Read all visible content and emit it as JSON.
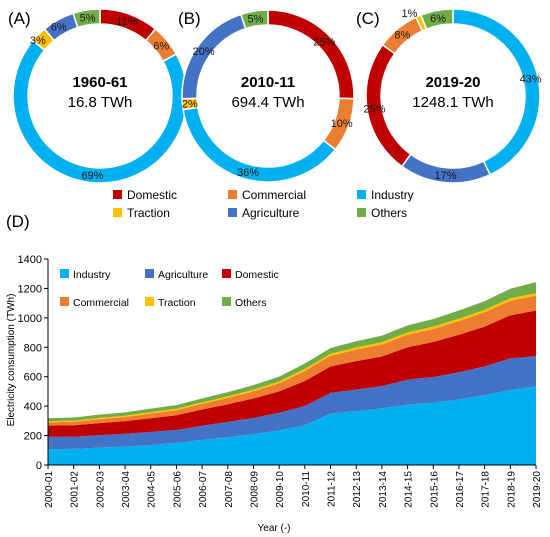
{
  "colors": {
    "Domestic": "#c00000",
    "Commercial": "#ed7d31",
    "Industry": "#00b0f0",
    "Traction": "#ffc000",
    "Agriculture": "#4472c4",
    "Others": "#70ad47"
  },
  "legend_top": {
    "items": [
      "Domestic",
      "Commercial",
      "Industry",
      "Traction",
      "Agriculture",
      "Others"
    ]
  },
  "chart_data": [
    {
      "type": "pie",
      "panel_label": "(A)",
      "center_title": "1960-61",
      "center_value": "16.8 TWh",
      "slices": [
        {
          "name": "Domestic",
          "value": 11,
          "label": "11%"
        },
        {
          "name": "Commercial",
          "value": 6,
          "label": "6%"
        },
        {
          "name": "Industry",
          "value": 69,
          "label": "69%"
        },
        {
          "name": "Traction",
          "value": 3,
          "label": "3%"
        },
        {
          "name": "Agriculture",
          "value": 6,
          "label": "6%"
        },
        {
          "name": "Others",
          "value": 5,
          "label": "5%"
        }
      ]
    },
    {
      "type": "pie",
      "panel_label": "(B)",
      "center_title": "2010-11",
      "center_value": "694.4 TWh",
      "slices": [
        {
          "name": "Domestic",
          "value": 25,
          "label": "25%"
        },
        {
          "name": "Commercial",
          "value": 10,
          "label": "10%"
        },
        {
          "name": "Industry",
          "value": 36,
          "label": "36%"
        },
        {
          "name": "Traction",
          "value": 2,
          "label": "2%"
        },
        {
          "name": "Agriculture",
          "value": 20,
          "label": "20%"
        },
        {
          "name": "Others",
          "value": 5,
          "label": "5%"
        }
      ]
    },
    {
      "type": "pie",
      "panel_label": "(C)",
      "center_title": "2019-20",
      "center_value": "1248.1 TWh",
      "slices": [
        {
          "name": "Industry",
          "value": 43,
          "label": "43%"
        },
        {
          "name": "Agriculture",
          "value": 17,
          "label": "17%"
        },
        {
          "name": "Domestic",
          "value": 25,
          "label": "25%"
        },
        {
          "name": "Commercial",
          "value": 8,
          "label": "8%"
        },
        {
          "name": "Traction",
          "value": 1,
          "label": "1%"
        },
        {
          "name": "Others",
          "value": 6,
          "label": "6%"
        }
      ]
    },
    {
      "type": "area",
      "stacked": true,
      "panel_label": "(D)",
      "xlabel": "Year (-)",
      "ylabel": "Electricity consumption (TWh)",
      "ylim": [
        0,
        1400
      ],
      "yticks": [
        0,
        200,
        400,
        600,
        800,
        1000,
        1200,
        1400
      ],
      "grid": false,
      "legend": {
        "position": "top-left",
        "items": [
          "Industry",
          "Agriculture",
          "Domestic",
          "Commercial",
          "Traction",
          "Others"
        ]
      },
      "categories": [
        "2000-01",
        "2001-02",
        "2002-03",
        "2003-04",
        "2004-05",
        "2005-06",
        "2006-07",
        "2007-08",
        "2008-09",
        "2009-10",
        "2010-11",
        "2011-12",
        "2012-13",
        "2013-14",
        "2014-15",
        "2015-16",
        "2016-17",
        "2017-18",
        "2018-19",
        "2019-20"
      ],
      "series": [
        {
          "name": "Industry",
          "values": [
            108,
            110,
            118,
            125,
            135,
            150,
            170,
            190,
            210,
            235,
            270,
            350,
            365,
            385,
            410,
            425,
            445,
            475,
            510,
            535
          ]
        },
        {
          "name": "Agriculture",
          "values": [
            85,
            82,
            85,
            87,
            90,
            88,
            97,
            103,
            110,
            120,
            131,
            140,
            148,
            152,
            170,
            173,
            185,
            195,
            215,
            205
          ]
        },
        {
          "name": "Domestic",
          "values": [
            75,
            78,
            82,
            86,
            93,
            100,
            110,
            120,
            132,
            145,
            170,
            180,
            193,
            200,
            220,
            238,
            255,
            270,
            292,
            310
          ]
        },
        {
          "name": "Commercial",
          "values": [
            22,
            24,
            26,
            28,
            31,
            34,
            38,
            42,
            48,
            55,
            68,
            72,
            78,
            82,
            85,
            88,
            93,
            98,
            98,
            100
          ]
        },
        {
          "name": "Traction",
          "values": [
            8,
            8,
            9,
            9,
            10,
            10,
            11,
            11,
            12,
            13,
            14,
            14,
            15,
            15,
            16,
            16,
            17,
            17,
            18,
            18
          ]
        },
        {
          "name": "Others",
          "values": [
            20,
            21,
            22,
            23,
            24,
            25,
            27,
            29,
            31,
            33,
            37,
            39,
            42,
            45,
            48,
            52,
            55,
            59,
            65,
            75
          ]
        }
      ]
    }
  ]
}
